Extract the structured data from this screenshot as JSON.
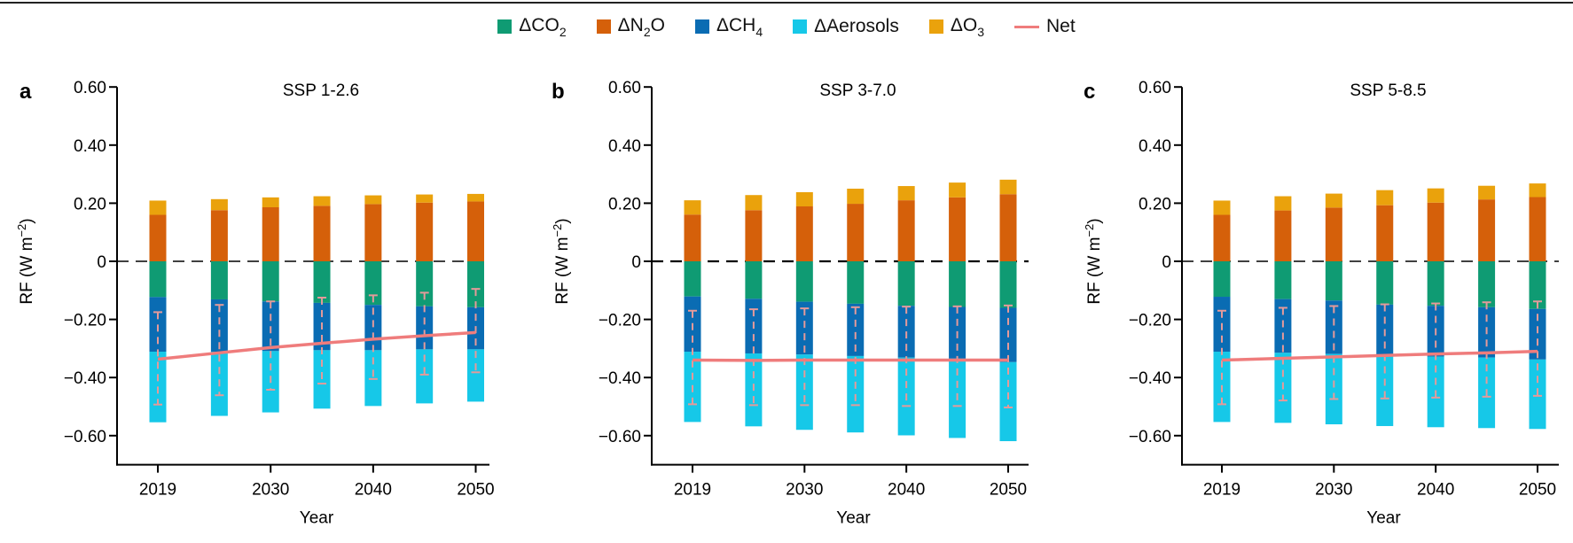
{
  "legend": [
    {
      "key": "co2",
      "label_main": "ΔCO",
      "label_sub": "2",
      "label_tail": "",
      "type": "swatch"
    },
    {
      "key": "n2o",
      "label_main": "ΔN",
      "label_sub": "2",
      "label_tail": "O",
      "type": "swatch"
    },
    {
      "key": "ch4",
      "label_main": "ΔCH",
      "label_sub": "4",
      "label_tail": "",
      "type": "swatch"
    },
    {
      "key": "aer",
      "label_main": "ΔAerosols",
      "label_sub": "",
      "label_tail": "",
      "type": "swatch"
    },
    {
      "key": "o3",
      "label_main": "ΔO",
      "label_sub": "3",
      "label_tail": "",
      "type": "swatch"
    },
    {
      "key": "net",
      "label_main": "Net",
      "label_sub": "",
      "label_tail": "",
      "type": "line"
    }
  ],
  "colors": {
    "co2": "#0f9b73",
    "n2o": "#d5600a",
    "ch4": "#0a6cb3",
    "aer": "#16c8e8",
    "o3": "#eaa20c",
    "net": "#ef7c7c",
    "error": "#e59a9a"
  },
  "chart_data": [
    {
      "type": "bar",
      "stacked": true,
      "panel": "a",
      "title": "SSP 1-2.6",
      "xlabel": "Year",
      "ylabel": "RF (W m⁻²)",
      "ylim": [
        -0.7,
        0.6
      ],
      "yticks": [
        0.6,
        0.4,
        0.2,
        0,
        -0.2,
        -0.4,
        -0.6
      ],
      "ytick_labels": [
        "0.60",
        "0.40",
        "0.20",
        "0",
        "−0.20",
        "−0.40",
        "−0.60"
      ],
      "xticks": [
        2019,
        2030,
        2040,
        2050
      ],
      "xtick_labels": [
        "2019",
        "2030",
        "2040",
        "2050"
      ],
      "zero_line": "dashed",
      "x": [
        2019,
        2025,
        2030,
        2035,
        2040,
        2045,
        2050
      ],
      "series": [
        {
          "name": "ΔN2O",
          "key": "n2o",
          "values": [
            0.16,
            0.176,
            0.186,
            0.191,
            0.197,
            0.202,
            0.206
          ]
        },
        {
          "name": "ΔO3",
          "key": "o3",
          "values": [
            0.049,
            0.038,
            0.034,
            0.033,
            0.03,
            0.028,
            0.026
          ]
        },
        {
          "name": "ΔCO2",
          "key": "co2",
          "values": [
            -0.123,
            -0.131,
            -0.138,
            -0.143,
            -0.15,
            -0.155,
            -0.158
          ]
        },
        {
          "name": "ΔCH4",
          "key": "ch4",
          "values": [
            -0.188,
            -0.18,
            -0.171,
            -0.163,
            -0.156,
            -0.148,
            -0.145
          ]
        },
        {
          "name": "ΔAerosols",
          "key": "aer",
          "values": [
            -0.243,
            -0.221,
            -0.211,
            -0.201,
            -0.192,
            -0.186,
            -0.18
          ]
        }
      ],
      "net": [
        -0.337,
        -0.315,
        -0.297,
        -0.282,
        -0.268,
        -0.256,
        -0.245
      ],
      "error": {
        "upper": [
          -0.175,
          -0.15,
          -0.138,
          -0.125,
          -0.117,
          -0.108,
          -0.095
        ],
        "lower": [
          -0.493,
          -0.461,
          -0.442,
          -0.421,
          -0.405,
          -0.39,
          -0.382
        ]
      }
    },
    {
      "type": "bar",
      "stacked": true,
      "panel": "b",
      "title": "SSP 3-7.0",
      "xlabel": "Year",
      "ylabel": "RF (W m⁻²)",
      "ylim": [
        -0.7,
        0.6
      ],
      "yticks": [
        0.6,
        0.4,
        0.2,
        0,
        -0.2,
        -0.4,
        -0.6
      ],
      "ytick_labels": [
        "0.60",
        "0.40",
        "0.20",
        "0",
        "−0.20",
        "−0.40",
        "−0.60"
      ],
      "xticks": [
        2019,
        2030,
        2040,
        2050
      ],
      "xtick_labels": [
        "2019",
        "2030",
        "2040",
        "2050"
      ],
      "zero_line": "dashed",
      "x": [
        2019,
        2025,
        2030,
        2035,
        2040,
        2045,
        2050
      ],
      "series": [
        {
          "name": "ΔN2O",
          "key": "n2o",
          "values": [
            0.161,
            0.176,
            0.189,
            0.198,
            0.21,
            0.22,
            0.231
          ]
        },
        {
          "name": "ΔO3",
          "key": "o3",
          "values": [
            0.049,
            0.052,
            0.049,
            0.052,
            0.049,
            0.051,
            0.05
          ]
        },
        {
          "name": "ΔCO2",
          "key": "co2",
          "values": [
            -0.121,
            -0.129,
            -0.139,
            -0.146,
            -0.153,
            -0.157,
            -0.16
          ]
        },
        {
          "name": "ΔCH4",
          "key": "ch4",
          "values": [
            -0.19,
            -0.188,
            -0.182,
            -0.18,
            -0.178,
            -0.178,
            -0.187
          ]
        },
        {
          "name": "ΔAerosols",
          "key": "aer",
          "values": [
            -0.242,
            -0.251,
            -0.259,
            -0.263,
            -0.268,
            -0.273,
            -0.272
          ]
        }
      ],
      "net": [
        -0.34,
        -0.341,
        -0.34,
        -0.34,
        -0.34,
        -0.34,
        -0.34
      ],
      "error": {
        "upper": [
          -0.17,
          -0.165,
          -0.162,
          -0.158,
          -0.156,
          -0.155,
          -0.152
        ],
        "lower": [
          -0.492,
          -0.495,
          -0.495,
          -0.495,
          -0.498,
          -0.498,
          -0.503
        ]
      }
    },
    {
      "type": "bar",
      "stacked": true,
      "panel": "c",
      "title": "SSP 5-8.5",
      "xlabel": "Year",
      "ylabel": "RF (W m⁻²)",
      "ylim": [
        -0.7,
        0.6
      ],
      "yticks": [
        0.6,
        0.4,
        0.2,
        0,
        -0.2,
        -0.4,
        -0.6
      ],
      "ytick_labels": [
        "0.60",
        "0.40",
        "0.20",
        "0",
        "−0.20",
        "−0.40",
        "−0.60"
      ],
      "xticks": [
        2019,
        2030,
        2040,
        2050
      ],
      "xtick_labels": [
        "2019",
        "2030",
        "2040",
        "2050"
      ],
      "zero_line": "dashed",
      "x": [
        2019,
        2025,
        2030,
        2035,
        2040,
        2045,
        2050
      ],
      "series": [
        {
          "name": "ΔN2O",
          "key": "n2o",
          "values": [
            0.16,
            0.175,
            0.185,
            0.193,
            0.202,
            0.213,
            0.221
          ]
        },
        {
          "name": "ΔO3",
          "key": "o3",
          "values": [
            0.049,
            0.049,
            0.048,
            0.052,
            0.049,
            0.047,
            0.047
          ]
        },
        {
          "name": "ΔCO2",
          "key": "co2",
          "values": [
            -0.122,
            -0.13,
            -0.135,
            -0.149,
            -0.153,
            -0.158,
            -0.164
          ]
        },
        {
          "name": "ΔCH4",
          "key": "ch4",
          "values": [
            -0.189,
            -0.185,
            -0.184,
            -0.174,
            -0.175,
            -0.173,
            -0.174
          ]
        },
        {
          "name": "ΔAerosols",
          "key": "aer",
          "values": [
            -0.242,
            -0.241,
            -0.242,
            -0.244,
            -0.243,
            -0.243,
            -0.239
          ]
        }
      ],
      "net": [
        -0.34,
        -0.334,
        -0.329,
        -0.324,
        -0.319,
        -0.315,
        -0.31
      ],
      "error": {
        "upper": [
          -0.17,
          -0.16,
          -0.154,
          -0.148,
          -0.145,
          -0.141,
          -0.138
        ],
        "lower": [
          -0.492,
          -0.479,
          -0.474,
          -0.472,
          -0.469,
          -0.466,
          -0.463
        ]
      }
    }
  ]
}
